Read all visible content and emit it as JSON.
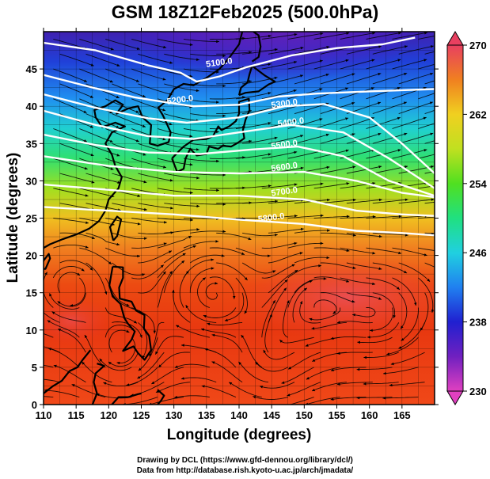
{
  "title": "GSM 18Z12Feb2025 (500.0hPa)",
  "axes": {
    "xlabel": "Longitude (degrees)",
    "ylabel": "Latitude  (degrees)",
    "xticks": [
      "110",
      "115",
      "120",
      "125",
      "130",
      "135",
      "140",
      "145",
      "150",
      "155",
      "160",
      "165"
    ],
    "yticks": [
      "0",
      "5",
      "10",
      "15",
      "20",
      "25",
      "30",
      "35",
      "40",
      "45"
    ],
    "xlim": [
      110,
      170
    ],
    "ylim": [
      0,
      50
    ]
  },
  "colorbar": {
    "ticks": [
      "230",
      "238",
      "246",
      "254",
      "262",
      "270"
    ],
    "range": [
      230,
      270
    ],
    "colors": [
      "#e040c0",
      "#7020c0",
      "#2020d0",
      "#2080f0",
      "#20d0e0",
      "#20e080",
      "#50e020",
      "#c0e020",
      "#f0d020",
      "#f08020",
      "#e83010",
      "#e84060"
    ]
  },
  "contours": {
    "labels": [
      "5100.0",
      "5200.0",
      "5300.0",
      "5400.0",
      "5500.0",
      "5600.0",
      "5700.0",
      "5800.0"
    ]
  },
  "credits": {
    "line1": "Drawing by DCL (https://www.gfd-dennou.org/library/dcl/)",
    "line2": "Data from http://database.rish.kyoto-u.ac.jp/arch/jmadata/"
  },
  "chart_data": {
    "type": "heatmap",
    "title": "GSM 18Z12Feb2025 (500.0hPa)",
    "xlabel": "Longitude (degrees)",
    "ylabel": "Latitude  (degrees)",
    "xlim": [
      110,
      170
    ],
    "ylim": [
      0,
      50
    ],
    "field": "temperature (K) shaded, geopotential height (m) contours, wind streamlines",
    "colorbar_range": [
      230,
      270
    ],
    "temperature_by_latitude": [
      {
        "lat": 0,
        "temp": 266
      },
      {
        "lat": 10,
        "temp": 267
      },
      {
        "lat": 15,
        "temp": 268
      },
      {
        "lat": 20,
        "temp": 266
      },
      {
        "lat": 25,
        "temp": 262
      },
      {
        "lat": 30,
        "temp": 257
      },
      {
        "lat": 35,
        "temp": 252
      },
      {
        "lat": 40,
        "temp": 246
      },
      {
        "lat": 45,
        "temp": 240
      },
      {
        "lat": 50,
        "temp": 234
      }
    ],
    "height_contours": [
      {
        "label": "5100.0",
        "lon": 137,
        "lat": 45.5
      },
      {
        "label": "5200.0",
        "lon": 131,
        "lat": 40.5
      },
      {
        "label": "5300.0",
        "lon": 147,
        "lat": 40.0
      },
      {
        "label": "5400.0",
        "lon": 148,
        "lat": 37.5
      },
      {
        "label": "5500.0",
        "lon": 147,
        "lat": 34.5
      },
      {
        "label": "5600.0",
        "lon": 147,
        "lat": 31.5
      },
      {
        "label": "5700.0",
        "lon": 147,
        "lat": 28.2
      },
      {
        "label": "5800.0",
        "lon": 145,
        "lat": 24.7
      }
    ]
  }
}
